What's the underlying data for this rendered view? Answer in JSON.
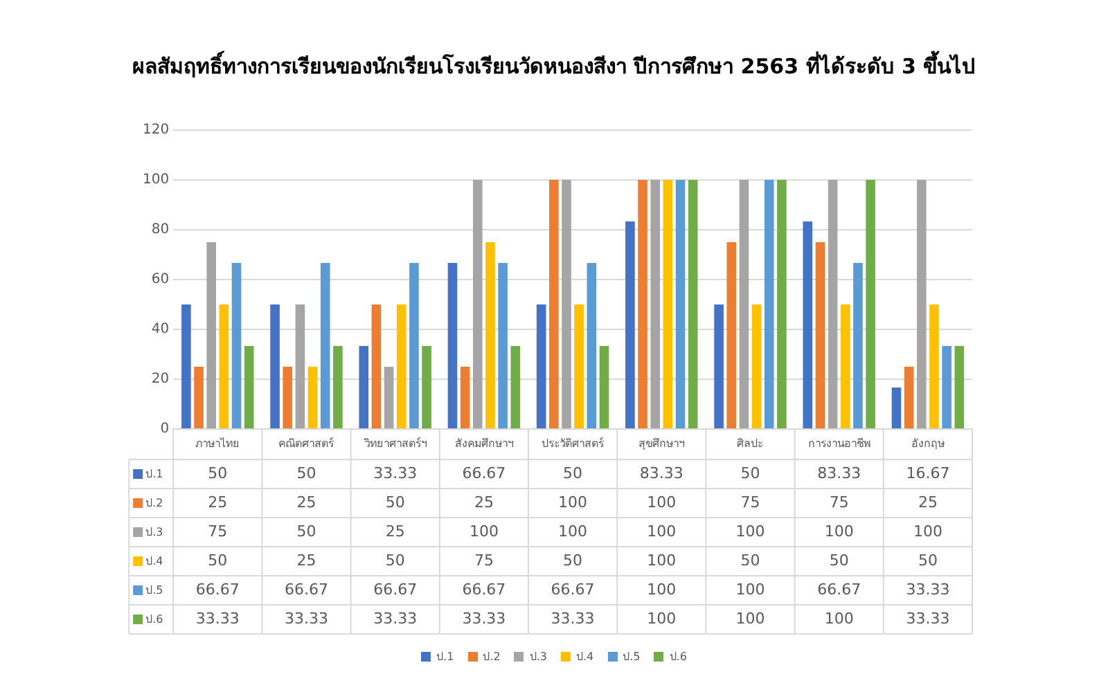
{
  "chart_data": {
    "type": "bar",
    "title": "ผลสัมฤทธิ์ทางการเรียนของนักเรียนโรงเรียนวัดหนองสีงา ปีการศึกษา 2563 ที่ได้ระดับ 3 ขึ้นไป",
    "categories": [
      "ภาษาไทย",
      "คณิตศาสตร์",
      "วิทยาศาสตร์ฯ",
      "สังคมศึกษาฯ",
      "ประวัติศาสตร์",
      "สุขศึกษาฯ",
      "ศิลปะ",
      "การงานอาชีพ",
      "อังกฤษ"
    ],
    "series": [
      {
        "name": "ป.1",
        "color": "#4472c4",
        "values": [
          50,
          50,
          33.33,
          66.67,
          50,
          83.33,
          50,
          83.33,
          16.67
        ]
      },
      {
        "name": "ป.2",
        "color": "#ed7d31",
        "values": [
          25,
          25,
          50,
          25,
          100,
          100,
          75,
          75,
          25
        ]
      },
      {
        "name": "ป.3",
        "color": "#a5a5a5",
        "values": [
          75,
          50,
          25,
          100,
          100,
          100,
          100,
          100,
          100
        ]
      },
      {
        "name": "ป.4",
        "color": "#ffc000",
        "values": [
          50,
          25,
          50,
          75,
          50,
          100,
          50,
          50,
          50
        ]
      },
      {
        "name": "ป.5",
        "color": "#5b9bd5",
        "values": [
          66.67,
          66.67,
          66.67,
          66.67,
          66.67,
          100,
          100,
          66.67,
          33.33
        ]
      },
      {
        "name": "ป.6",
        "color": "#70ad47",
        "values": [
          33.33,
          33.33,
          33.33,
          33.33,
          33.33,
          100,
          100,
          100,
          33.33
        ]
      }
    ],
    "ylim": [
      0,
      120
    ],
    "yticks": [
      0,
      20,
      40,
      60,
      80,
      100,
      120
    ],
    "grid": "y",
    "legend": "bottom",
    "data_labels": true
  }
}
